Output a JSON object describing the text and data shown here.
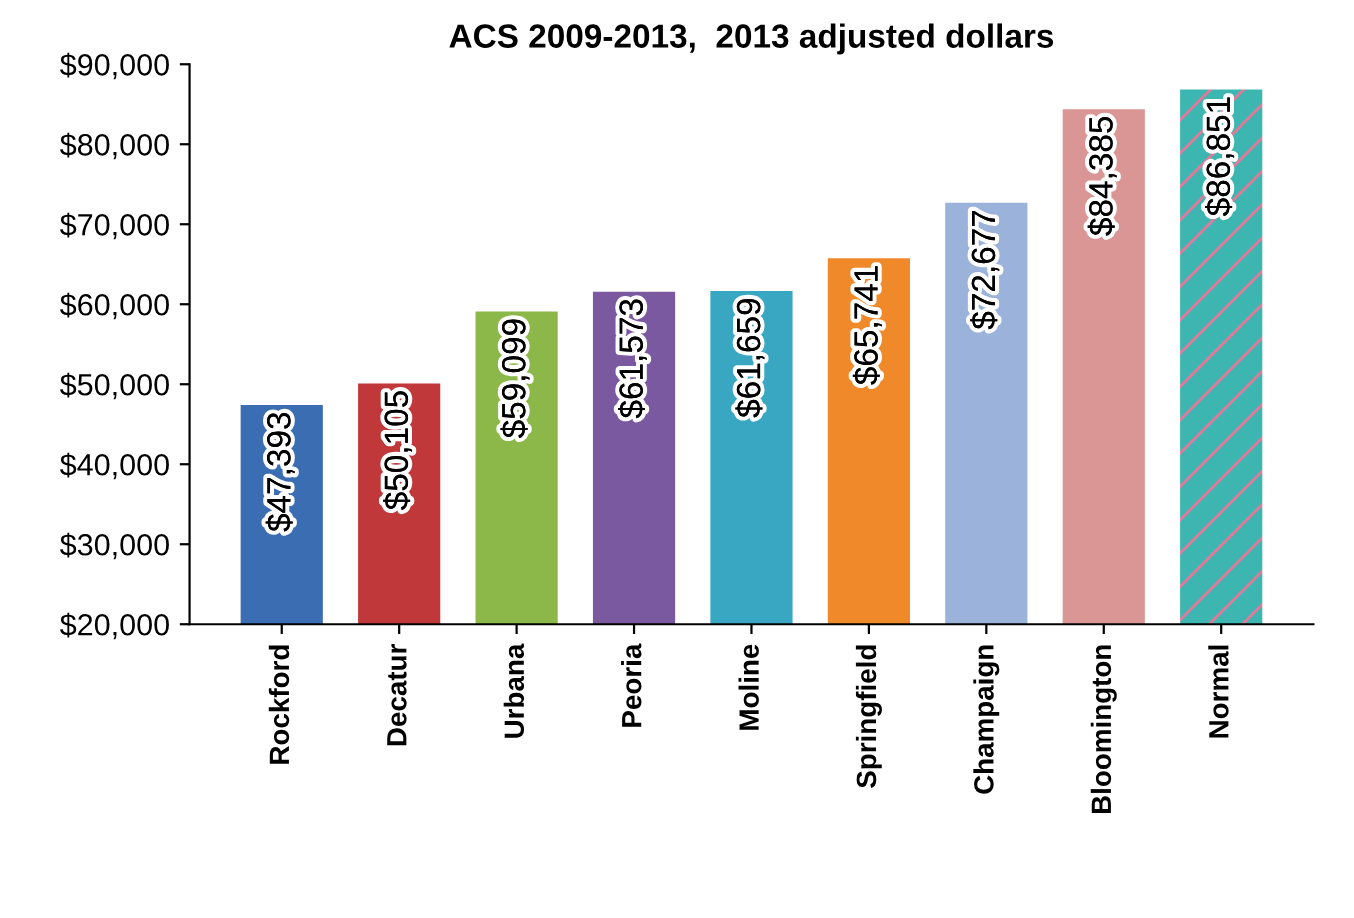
{
  "chart_data": {
    "type": "bar",
    "title": "ACS 2009-2013,  2013 adjusted dollars",
    "categories": [
      "Rockford",
      "Decatur",
      "Urbana",
      "Peoria",
      "Moline",
      "Springfield",
      "Champaign",
      "Bloomington",
      "Normal"
    ],
    "values": [
      47393,
      50105,
      59099,
      61573,
      61659,
      65741,
      72677,
      84385,
      86851
    ],
    "colors": [
      "#3b6db3",
      "#c0383a",
      "#8cb84a",
      "#7b59a0",
      "#3aa7c2",
      "#f0892a",
      "#9bb2da",
      "#d99694",
      "#3db5b0"
    ],
    "value_labels": [
      "$47,393",
      "$50,105",
      "$59,099",
      "$61,573",
      "$61,659",
      "$65,741",
      "$72,677",
      "$84,385",
      "$86,851"
    ],
    "ylim": [
      20000,
      90000
    ],
    "yticks": [
      {
        "value": 20000,
        "label": "$20,000"
      },
      {
        "value": 30000,
        "label": "$30,000"
      },
      {
        "value": 40000,
        "label": "$40,000"
      },
      {
        "value": 50000,
        "label": "$50,000"
      },
      {
        "value": 60000,
        "label": "$60,000"
      },
      {
        "value": 70000,
        "label": "$70,000"
      },
      {
        "value": 80000,
        "label": "$80,000"
      },
      {
        "value": 90000,
        "label": "$90,000"
      }
    ],
    "grid": false,
    "legend": false
  }
}
